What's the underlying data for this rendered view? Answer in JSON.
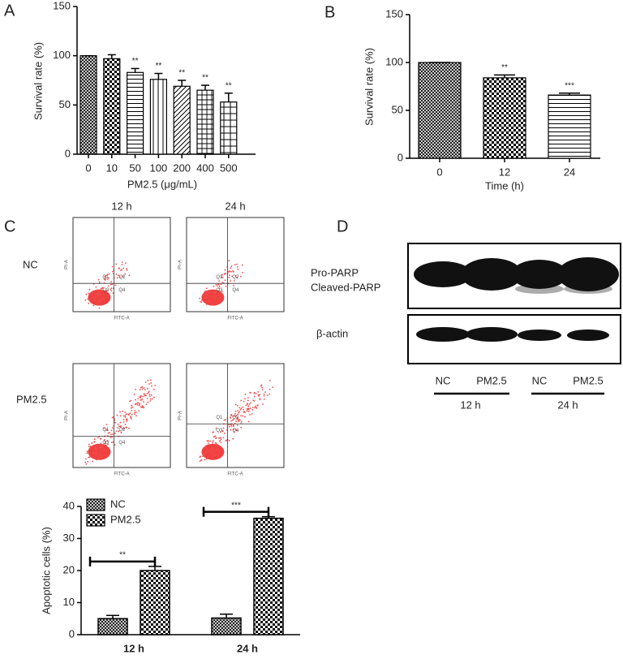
{
  "panel_labels": [
    "A",
    "B",
    "C",
    "D"
  ],
  "chart_data": [
    {
      "type": "bar",
      "categories": [
        "0",
        "10",
        "50",
        "100",
        "200",
        "400",
        "500"
      ],
      "values": [
        100,
        97,
        83,
        76,
        69,
        65,
        53
      ],
      "errors": [
        0,
        4,
        4,
        6,
        6,
        5,
        9
      ],
      "annotations": [
        null,
        null,
        "**",
        "**",
        "**",
        "**",
        "**"
      ],
      "color": "#000000",
      "ylim": [
        0,
        150
      ],
      "yticks": [
        0,
        50,
        100,
        150
      ],
      "y_label": "Survival rate (%)",
      "x_label": "PM2.5 (μg/mL)"
    },
    {
      "type": "bar",
      "categories": [
        "0",
        "12",
        "24"
      ],
      "values": [
        100,
        84,
        66
      ],
      "errors": [
        0,
        3,
        2
      ],
      "annotations": [
        null,
        "**",
        "***"
      ],
      "color": "#000000",
      "ylim": [
        0,
        150
      ],
      "yticks": [
        0,
        50,
        100,
        150
      ],
      "y_label": "Survival rate (%)",
      "x_label": "Time (h)"
    },
    {
      "type": "grouped_bar",
      "categories": [
        "12 h",
        "24 h"
      ],
      "series": [
        {
          "name": "NC",
          "color": "#000000",
          "values": [
            5,
            5.2
          ],
          "errors": [
            1,
            1.2
          ]
        },
        {
          "name": "PM2.5",
          "color": "#000000",
          "values": [
            20,
            36.3
          ],
          "errors": [
            1.3,
            0.5
          ]
        }
      ],
      "annotations": [
        "**",
        "***"
      ],
      "ylim": [
        0,
        40
      ],
      "yticks": [
        0,
        10,
        20,
        30,
        40
      ],
      "y_label": "Apoptotic cells (%)",
      "legend": "upper left"
    }
  ],
  "flow_cytometry": {
    "columns": [
      "12 h",
      "24 h"
    ],
    "rows": [
      "NC",
      "PM2.5"
    ],
    "y_axis": "PI-A",
    "x_axis": "FITC-A",
    "quadrants": [
      "Q1",
      "Q2",
      "Q3",
      "Q4"
    ]
  },
  "western_blot": {
    "rows": [
      "Pro-PARP",
      "Cleaved-PARP",
      "β-actin"
    ],
    "lanes": [
      "NC",
      "PM2.5",
      "NC",
      "PM2.5"
    ],
    "groups": [
      "12 h",
      "24 h"
    ]
  }
}
